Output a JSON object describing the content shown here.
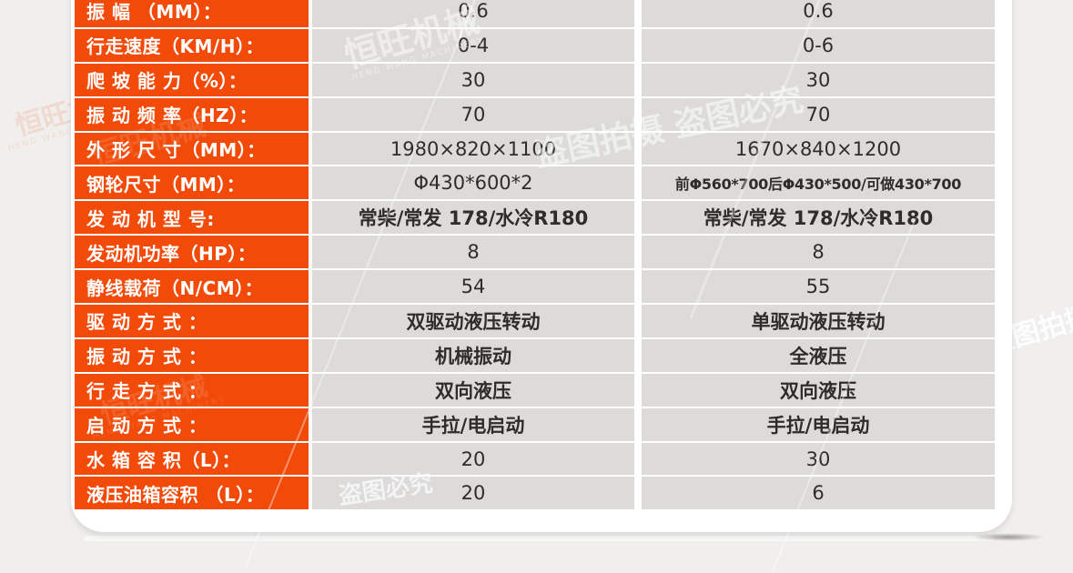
{
  "colors": {
    "accent_orange": "#f24a08",
    "cell_gray": "#dcdbd9",
    "value_text": "#2e2d2b",
    "label_text": "#ffffff",
    "page_background": "#f0efee",
    "card_background": "#ffffff"
  },
  "table": {
    "rows": [
      {
        "label": "振  幅  （MM）：",
        "v1": "0.6",
        "v2": "0.6"
      },
      {
        "label": "行走速度（KM/H）：",
        "v1": "0-4",
        "v2": "0-6"
      },
      {
        "label": "爬 坡 能 力（%）：",
        "v1": "30",
        "v2": "30"
      },
      {
        "label": "振 动 频 率（HZ）：",
        "v1": "70",
        "v2": "70"
      },
      {
        "label": "外 形 尺 寸（MM）：",
        "v1": "1980×820×1100",
        "v2": "1670×840×1200"
      },
      {
        "label": "钢轮尺寸（MM）：",
        "v1": "Φ430*600*2",
        "v2": "前Φ560*700后Φ430*500/可做430*700"
      },
      {
        "label": "发 动 机 型 号:",
        "v1": "常柴/常发 178/水冷R180",
        "v2": "常柴/常发 178/水冷R180"
      },
      {
        "label": "发动机功率（HP）：",
        "v1": "8",
        "v2": "8"
      },
      {
        "label": "静线载荷（N/CM）：",
        "v1": "54",
        "v2": "55"
      },
      {
        "label": "驱 动 方 式 ：",
        "v1": "双驱动液压转动",
        "v2": "单驱动液压转动"
      },
      {
        "label": "振 动 方 式 ：",
        "v1": "机械振动",
        "v2": "全液压"
      },
      {
        "label": "行 走 方 式 ：",
        "v1": "双向液压",
        "v2": "双向液压"
      },
      {
        "label": "启 动 方 式 ：",
        "v1": "手拉/电启动",
        "v2": "手拉/电启动"
      },
      {
        "label": "水 箱 容 积（L）：",
        "v1": "20",
        "v2": "30"
      },
      {
        "label": "液压油箱容积 （L）：",
        "v1": "20",
        "v2": "6"
      }
    ]
  },
  "watermarks": {
    "brand": "恒旺机械",
    "brand_sub": "HENG WANG MACHINERY",
    "claim": "盗图必究",
    "claim_full": "盗图拍摄 盗图必究",
    "shoot": "盗图拍摄"
  }
}
